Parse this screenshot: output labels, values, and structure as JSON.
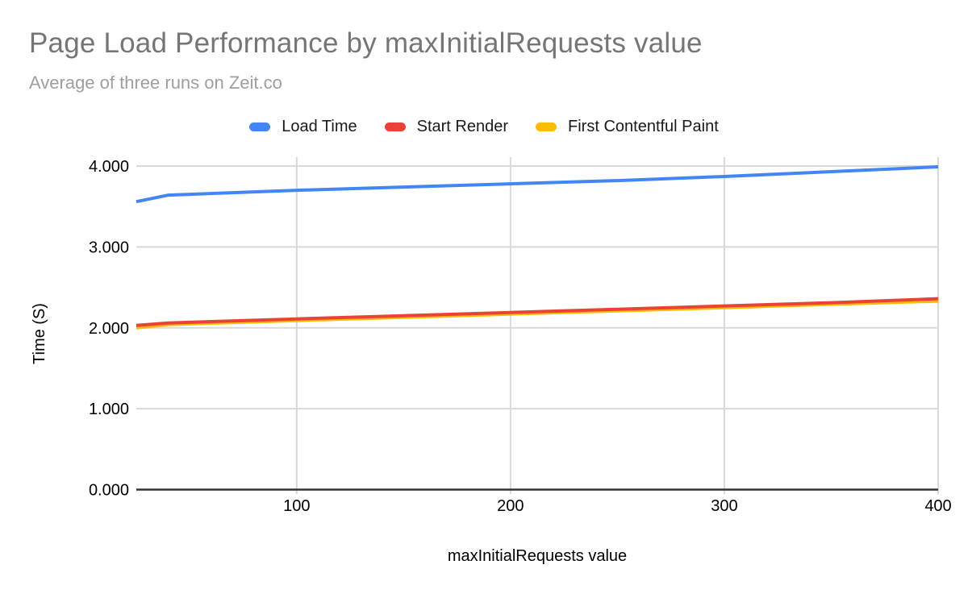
{
  "title": "Page Load Performance by maxInitialRequests value",
  "subtitle": "Average of three runs on Zeit.co",
  "legend": {
    "items": [
      {
        "label": "Load Time",
        "color": "#4285F4"
      },
      {
        "label": "Start Render",
        "color": "#EA4335"
      },
      {
        "label": "First Contentful Paint",
        "color": "#FBBC04"
      }
    ]
  },
  "colors": {
    "title": "#757575",
    "subtitle": "#9E9E9E",
    "gridline": "#D9D9D9",
    "axis_line": "#333333",
    "tick_label": "#000000"
  },
  "chart_data": {
    "type": "line",
    "title": "Page Load Performance by maxInitialRequests value",
    "subtitle": "Average of three runs on Zeit.co",
    "xlabel": "maxInitialRequests value",
    "ylabel": "Time (S)",
    "xlim": [
      25,
      400
    ],
    "ylim": [
      0,
      4
    ],
    "grid": true,
    "legend_position": "top",
    "x": [
      25,
      40,
      100,
      150,
      200,
      250,
      300,
      350,
      400
    ],
    "series": [
      {
        "name": "Load Time",
        "color": "#4285F4",
        "values": [
          3.56,
          3.64,
          3.7,
          3.74,
          3.78,
          3.82,
          3.87,
          3.93,
          3.99
        ]
      },
      {
        "name": "Start Render",
        "color": "#EA4335",
        "values": [
          2.03,
          2.06,
          2.11,
          2.15,
          2.19,
          2.23,
          2.27,
          2.31,
          2.36
        ]
      },
      {
        "name": "First Contentful Paint",
        "color": "#FBBC04",
        "values": [
          2.0,
          2.04,
          2.09,
          2.13,
          2.17,
          2.21,
          2.25,
          2.29,
          2.33
        ]
      }
    ],
    "x_ticks": [
      {
        "value": 100,
        "label": "100"
      },
      {
        "value": 200,
        "label": "200"
      },
      {
        "value": 300,
        "label": "300"
      },
      {
        "value": 400,
        "label": "400"
      }
    ],
    "y_ticks": [
      {
        "value": 0,
        "label": "0.000"
      },
      {
        "value": 1,
        "label": "1.000"
      },
      {
        "value": 2,
        "label": "2.000"
      },
      {
        "value": 3,
        "label": "3.000"
      },
      {
        "value": 4,
        "label": "4.000"
      }
    ]
  }
}
